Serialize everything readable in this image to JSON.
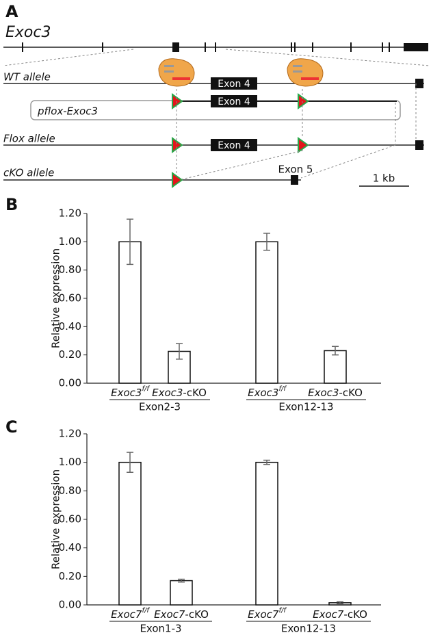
{
  "diagram": {
    "panel_label": "A",
    "gene": "Exoc3",
    "wt_allele": "WT allele",
    "exon4_labels": [
      "Exon 4",
      "Exon 4",
      "Exon 4"
    ],
    "plasmid": "pflox-Exoc3",
    "flox_allele": "Flox allele",
    "cko_allele": "cKO allele",
    "exon5": "Exon 5",
    "scale_bar": "1 kb"
  },
  "chart_data": [
    {
      "type": "bar",
      "panel_label": "B",
      "y_label": "Relative expression",
      "color": "#ffffff",
      "categories": [
        {
          "gene": "Exoc3",
          "sup": "f/f"
        },
        {
          "gene": "Exoc3",
          "suffix": "-cKO"
        },
        {
          "gene": "Exoc3",
          "sup": "f/f"
        },
        {
          "gene": "Exoc3",
          "suffix": "-cKO"
        }
      ],
      "values": [
        1.0,
        0.225,
        1.0,
        0.23
      ],
      "errors": [
        0.16,
        0.055,
        0.06,
        0.03
      ],
      "groups": [
        "Exon2-3",
        "Exon12-13"
      ],
      "ylim": [
        0,
        1.2
      ],
      "yticks": [
        {
          "value": 0,
          "label": "0.00"
        },
        {
          "value": 0.2,
          "label": "0.20"
        },
        {
          "value": 0.4,
          "label": "0.40"
        },
        {
          "value": 0.6,
          "label": "0.60"
        },
        {
          "value": 0.8,
          "label": "0.80"
        },
        {
          "value": 1,
          "label": "1.00"
        },
        {
          "value": 1.2,
          "label": "1.20"
        }
      ]
    },
    {
      "type": "bar",
      "panel_label": "C",
      "y_label": "Relative expression",
      "color": "#ffffff",
      "categories": [
        {
          "gene": "Exoc7",
          "sup": "f/f"
        },
        {
          "gene": "Exoc7",
          "suffix": "-cKO"
        },
        {
          "gene": "Exoc7",
          "sup": "f/f"
        },
        {
          "gene": "Exoc7",
          "suffix": "-cKO"
        }
      ],
      "values": [
        1.0,
        0.17,
        1.0,
        0.015
      ],
      "errors": [
        0.07,
        0.01,
        0.015,
        0.007
      ],
      "groups": [
        "Exon1-3",
        "Exon12-13"
      ],
      "ylim": [
        0,
        1.2
      ],
      "yticks": [
        {
          "value": 0,
          "label": "0.00"
        },
        {
          "value": 0.2,
          "label": "0.20"
        },
        {
          "value": 0.4,
          "label": "0.40"
        },
        {
          "value": 0.6,
          "label": "0.60"
        },
        {
          "value": 0.8,
          "label": "0.80"
        },
        {
          "value": 1,
          "label": "1.00"
        },
        {
          "value": 1.2,
          "label": "1.20"
        }
      ]
    }
  ]
}
